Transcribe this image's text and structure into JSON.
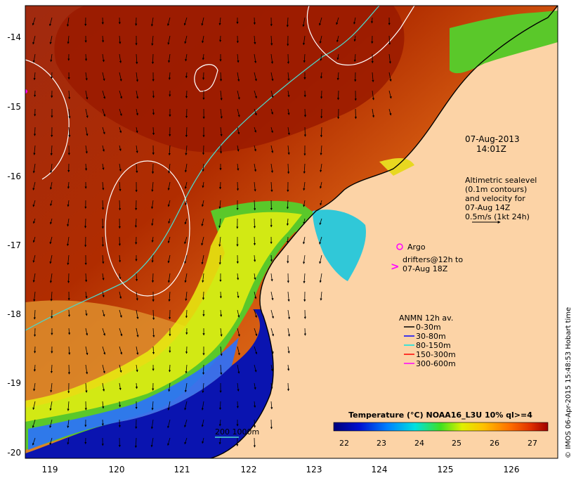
{
  "map": {
    "x_ticks": [
      "119",
      "120",
      "121",
      "122",
      "123",
      "124",
      "125",
      "126"
    ],
    "y_ticks": [
      "-14",
      "-15",
      "-16",
      "-17",
      "-18",
      "-19",
      "-20"
    ],
    "date_line1": "07-Aug-2013",
    "date_line2": "14:01Z",
    "sealevel_lines": [
      "Altimetric sealevel",
      "(0.1m contours)",
      "and velocity for",
      "07-Aug 14Z",
      "0.5m/s (1kt 24h)"
    ],
    "argo_label": "Argo",
    "drifters_lines": [
      "drifters@12h to",
      "07-Aug 18Z"
    ],
    "anmn_title": "ANMN 12h av.",
    "anmn_items": [
      {
        "label": "0-30m",
        "color": "#000000"
      },
      {
        "label": "30-80m",
        "color": "#0000ff"
      },
      {
        "label": "80-150m",
        "color": "#00e5e5"
      },
      {
        "label": "150-300m",
        "color": "#ff0000"
      },
      {
        "label": "300-600m",
        "color": "#ff00ff"
      }
    ],
    "isobath_label": "200  1000m",
    "colorbar_title": "Temperature (°C) NOAA16_L3U 10% ql>=4",
    "colorbar_ticks": [
      "22",
      "23",
      "24",
      "25",
      "26",
      "27"
    ],
    "credit": "© IMOS 06-Apr-2015 15:48:53 Hobart time",
    "colors": {
      "land": "#fcd3a6",
      "isobath_200": "#4fd6c8",
      "sealevel_contour": "#ffffff",
      "argo": "#ff00ff"
    }
  }
}
